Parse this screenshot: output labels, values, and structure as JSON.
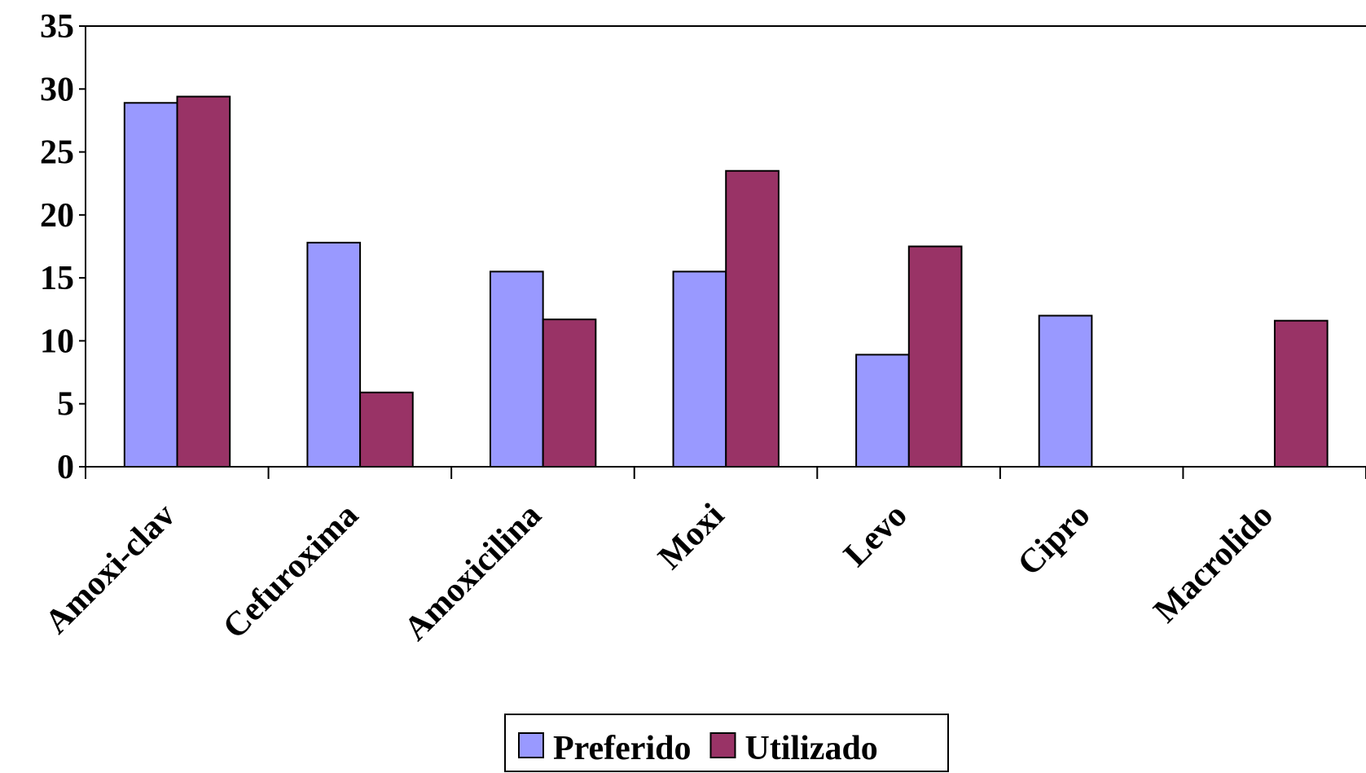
{
  "chart_data": {
    "type": "bar",
    "categories": [
      "Amoxi-clav",
      "Cefuroxima",
      "Amoxicilina",
      "Moxi",
      "Levo",
      "Cipro",
      "Macrolido"
    ],
    "series": [
      {
        "name": "Preferido",
        "color": "#9999ff",
        "values": [
          28.9,
          17.8,
          15.5,
          15.5,
          8.9,
          12,
          0
        ]
      },
      {
        "name": "Utilizado",
        "color": "#993366",
        "values": [
          29.4,
          5.9,
          11.7,
          23.5,
          17.5,
          0,
          11.6
        ]
      }
    ],
    "ylim": [
      0,
      35
    ],
    "yticks": [
      0,
      5,
      10,
      15,
      20,
      25,
      30,
      35
    ],
    "legend": "bottom"
  }
}
